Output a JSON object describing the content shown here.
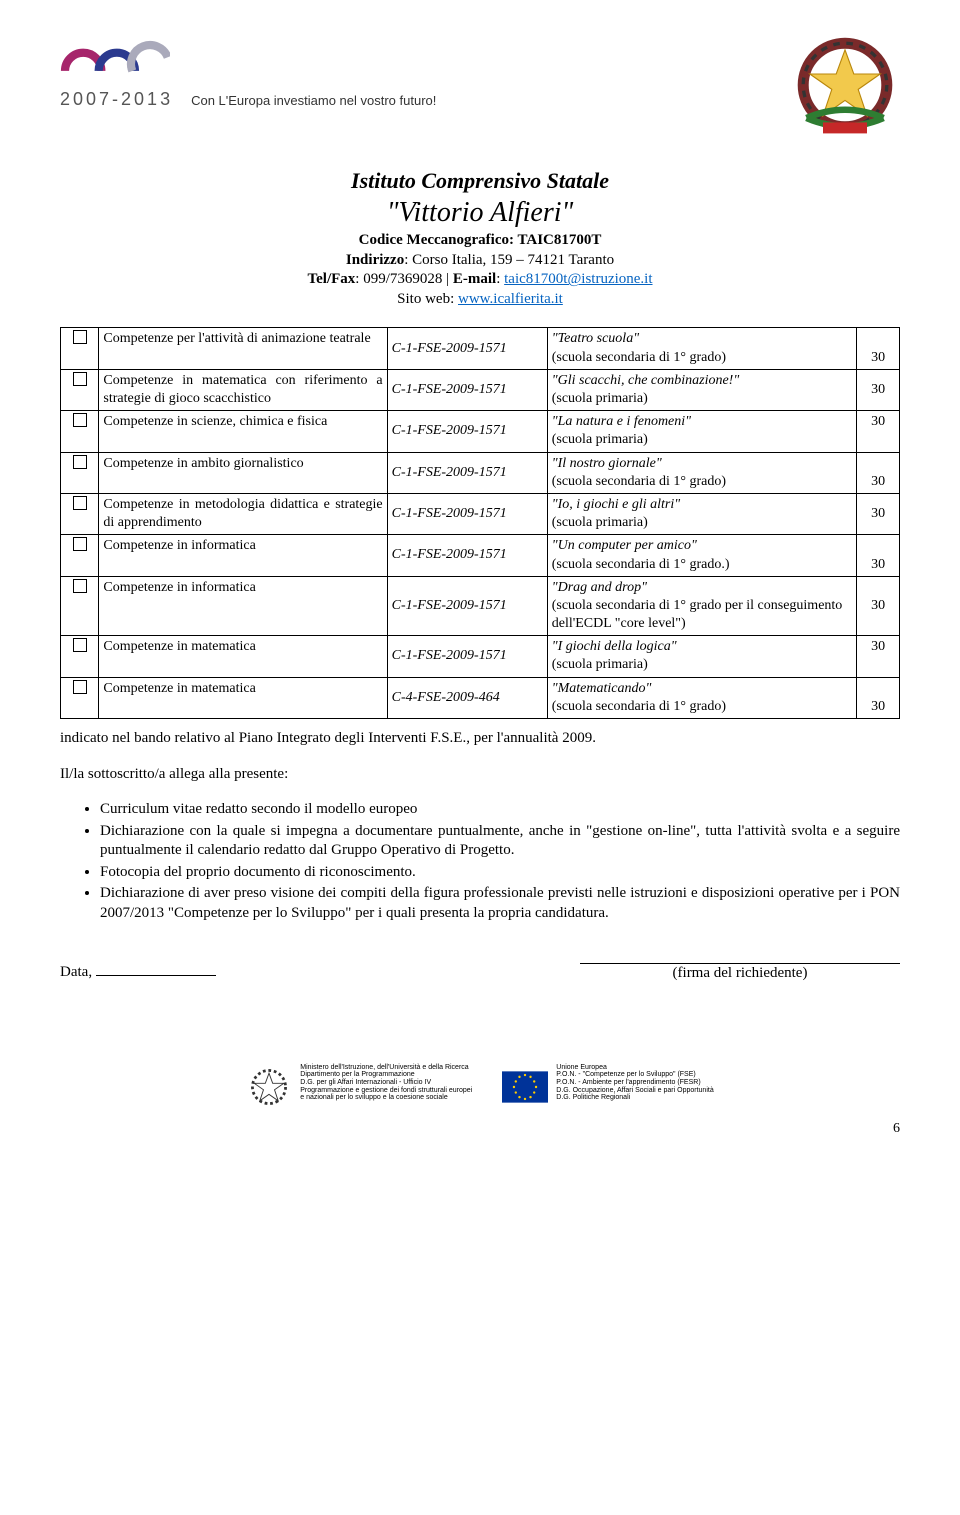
{
  "header": {
    "years": "2007-2013",
    "tagline": "Con L'Europa investiamo nel vostro futuro!"
  },
  "title": {
    "line1": "Istituto Comprensivo Statale",
    "line2": "\"Vittorio Alfieri\"",
    "codice_label": "Codice Meccanografico: ",
    "codice_value": "TAIC81700T",
    "indirizzo_label": "Indirizzo",
    "indirizzo_value": ": Corso Italia, 159 – 74121  Taranto",
    "telfax_label": "Tel/Fax",
    "telfax_value": ": 099/7369028 | ",
    "email_label": "E-mail",
    "email_colon": ": ",
    "email_link": "taic81700t@istruzione.it",
    "sito_label": "Sito web: ",
    "sito_link": "www.icalfierita.it"
  },
  "rows": [
    {
      "desc": "Competenze per l'attività di animazione teatrale",
      "code": "C-1-FSE-2009-1571",
      "titleItalic": "\"Teatro scuola\"",
      "subtitle": "(scuola secondaria di 1° grado)",
      "hours": "30",
      "hoursBottom": true
    },
    {
      "desc": "Competenze in matematica con riferimento a strategie di gioco scacchistico",
      "code": "C-1-FSE-2009-1571",
      "titleItalic": "\"Gli scacchi, che combinazione!\"",
      "subtitle": "(scuola primaria)",
      "hours": "30"
    },
    {
      "desc": "Competenze in scienze, chimica e fisica",
      "code": "C-1-FSE-2009-1571",
      "titleItalic": "\"La natura e i fenomeni\"",
      "subtitle": "(scuola primaria)",
      "hours": "30",
      "hoursTop": true
    },
    {
      "desc": "Competenze in ambito giornalistico",
      "code": "C-1-FSE-2009-1571",
      "titleItalic": "\"Il  nostro giornale\"",
      "subtitle": "(scuola secondaria di 1° grado)",
      "hours": "30",
      "hoursBottom": true
    },
    {
      "desc": "Competenze in metodologia didattica e strategie di apprendimento",
      "code": "C-1-FSE-2009-1571",
      "titleItalic": "\"Io, i giochi e gli altri\"",
      "subtitle": "(scuola primaria)",
      "hours": "30"
    },
    {
      "desc": "Competenze in informatica",
      "code": "C-1-FSE-2009-1571",
      "titleItalic": "\"Un computer per amico\"",
      "subtitle": "(scuola secondaria di 1° grado.)",
      "hours": "30",
      "hoursBottom": true
    },
    {
      "desc": "Competenze in informatica",
      "code": "C-1-FSE-2009-1571",
      "titleItalic": "\"Drag and drop\"",
      "subtitle": "(scuola secondaria di 1° grado per il conseguimento dell'ECDL \"core level\")",
      "hours": "30"
    },
    {
      "desc": "Competenze in matematica",
      "code": "C-1-FSE-2009-1571",
      "titleItalic": "\"I giochi della logica\"",
      "subtitle": "(scuola primaria)",
      "hours": "30",
      "hoursTop": true
    },
    {
      "desc": "Competenze in matematica",
      "code": "C-4-FSE-2009-464",
      "titleItalic": "\"Matematicando\"",
      "subtitle": "(scuola secondaria di 1° grado)",
      "hours": "30",
      "hoursBottom": true
    }
  ],
  "afterTable": "indicato nel bando relativo al Piano Integrato degli Interventi F.S.E., per l'annualità 2009.",
  "attachIntro": "Il/la sottoscritto/a allega alla presente:",
  "bullets": [
    "Curriculum vitae redatto secondo il modello europeo",
    "Dichiarazione con la quale si impegna a documentare puntualmente, anche in \"gestione on-line\", tutta l'attività svolta e a seguire puntualmente il calendario redatto dal Gruppo Operativo di Progetto.",
    "Fotocopia del proprio documento di riconoscimento.",
    "Dichiarazione di aver preso visione dei compiti della figura professionale previsti nelle istruzioni e disposizioni operative per i PON 2007/2013 \"Competenze per lo Sviluppo\" per i quali presenta la propria candidatura."
  ],
  "dateLabel": "Data, ",
  "signLabel": "(firma del richiedente)",
  "footer": {
    "left1": "Ministero dell'Istruzione, dell'Università e della Ricerca",
    "left2": "Dipartimento per la Programmazione",
    "left3": "D.G. per gli Affari Internazionali - Ufficio IV",
    "left4": "Programmazione e gestione dei fondi strutturali europei",
    "left5": "e nazionali per lo sviluppo e la coesione sociale",
    "right1": "Unione Europea",
    "right2": "P.O.N. - \"Competenze per lo Sviluppo\" (FSE)",
    "right3": "P.O.N. - Ambiente per l'apprendimento (FESR)",
    "right4": "D.G. Occupazione, Affari Sociali e pari Opportunità",
    "right5": "D.G. Politiche Regionali"
  },
  "pageNum": "6",
  "colors": {
    "arc_magenta": "#a6256b",
    "arc_blue": "#2b3a8f",
    "arc_gray": "#aab"
  }
}
